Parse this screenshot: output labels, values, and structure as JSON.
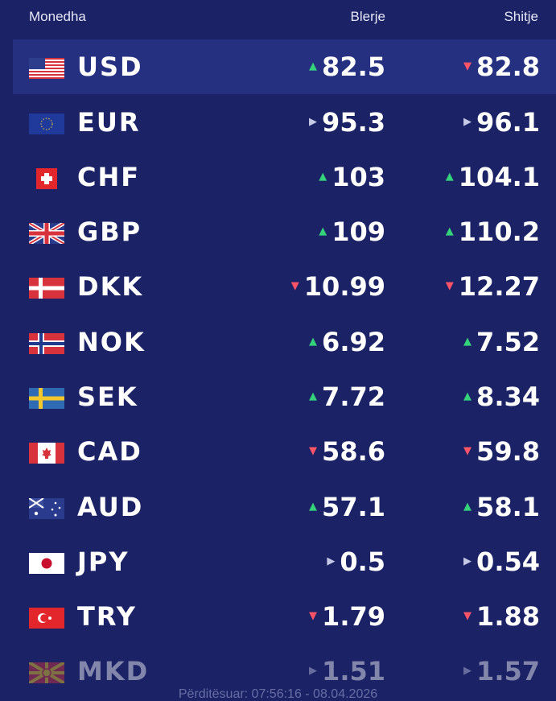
{
  "header": {
    "currency": "Monedha",
    "buy": "Blerje",
    "sell": "Shitje"
  },
  "rows": [
    {
      "code": "USD",
      "flag": "us-flag-icon",
      "buy": "82.5",
      "buy_dir": "up",
      "sell": "82.8",
      "sell_dir": "down"
    },
    {
      "code": "EUR",
      "flag": "eu-flag-icon",
      "buy": "95.3",
      "buy_dir": "same",
      "sell": "96.1",
      "sell_dir": "same"
    },
    {
      "code": "CHF",
      "flag": "ch-flag-icon",
      "buy": "103",
      "buy_dir": "up",
      "sell": "104.1",
      "sell_dir": "up"
    },
    {
      "code": "GBP",
      "flag": "gb-flag-icon",
      "buy": "109",
      "buy_dir": "up",
      "sell": "110.2",
      "sell_dir": "up"
    },
    {
      "code": "DKK",
      "flag": "dk-flag-icon",
      "buy": "10.99",
      "buy_dir": "down",
      "sell": "12.27",
      "sell_dir": "down"
    },
    {
      "code": "NOK",
      "flag": "no-flag-icon",
      "buy": "6.92",
      "buy_dir": "up",
      "sell": "7.52",
      "sell_dir": "up"
    },
    {
      "code": "SEK",
      "flag": "se-flag-icon",
      "buy": "7.72",
      "buy_dir": "up",
      "sell": "8.34",
      "sell_dir": "up"
    },
    {
      "code": "CAD",
      "flag": "ca-flag-icon",
      "buy": "58.6",
      "buy_dir": "down",
      "sell": "59.8",
      "sell_dir": "down"
    },
    {
      "code": "AUD",
      "flag": "au-flag-icon",
      "buy": "57.1",
      "buy_dir": "up",
      "sell": "58.1",
      "sell_dir": "up"
    },
    {
      "code": "JPY",
      "flag": "jp-flag-icon",
      "buy": "0.5",
      "buy_dir": "same",
      "sell": "0.54",
      "sell_dir": "same"
    },
    {
      "code": "TRY",
      "flag": "tr-flag-icon",
      "buy": "1.79",
      "buy_dir": "down",
      "sell": "1.88",
      "sell_dir": "down"
    },
    {
      "code": "MKD",
      "flag": "mk-flag-icon",
      "buy": "1.51",
      "buy_dir": "same",
      "sell": "1.57",
      "sell_dir": "same"
    }
  ],
  "arrows": {
    "up": "▲",
    "down": "▼",
    "same": "▶"
  },
  "colors": {
    "background": "#1b2266",
    "highlight": "#263081",
    "up": "#35d27c",
    "down": "#ff5468",
    "same": "#c5c9e6"
  },
  "footer": "Përditësuar: 07:56:16 - 08.04.2026"
}
